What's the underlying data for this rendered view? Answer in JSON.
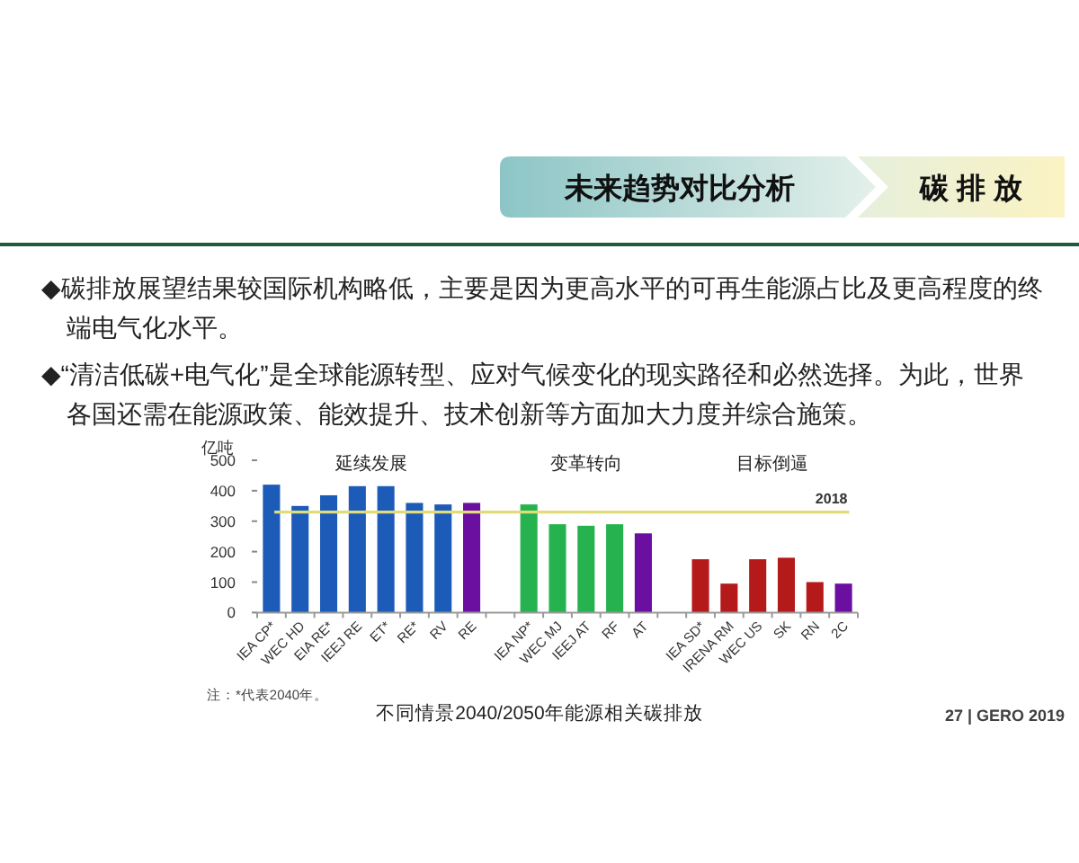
{
  "chart_data": {
    "type": "bar",
    "title": "未来趋势对比分析",
    "subtitle": "碳 排 放",
    "ylabel": "亿吨",
    "xlabel": "不同情景2040/2050年能源相关碳排放",
    "categories": [
      "IEA CP*",
      "WEC HD",
      "EIA RE*",
      "IEEJ RE",
      "ET*",
      "RE*",
      "RV",
      "RE",
      null,
      "IEA NP*",
      "WEC MJ",
      "IEEJ AT",
      "RF",
      "AT",
      null,
      "IEA SD*",
      "IRENA RM",
      "WEC US",
      "SK",
      "RN",
      "2C"
    ],
    "values": [
      420,
      350,
      385,
      415,
      415,
      360,
      355,
      360,
      null,
      355,
      290,
      285,
      290,
      260,
      null,
      175,
      95,
      175,
      180,
      100,
      95
    ],
    "colors": [
      "#1c5cb8",
      "#1c5cb8",
      "#1c5cb8",
      "#1c5cb8",
      "#1c5cb8",
      "#1c5cb8",
      "#1c5cb8",
      "#6a0fa0",
      null,
      "#26b34f",
      "#26b34f",
      "#26b34f",
      "#26b34f",
      "#6a0fa0",
      null,
      "#b51a1a",
      "#b51a1a",
      "#b51a1a",
      "#b51a1a",
      "#b51a1a",
      "#6a0fa0"
    ],
    "ylim": [
      0,
      500
    ],
    "yticks": [
      0,
      100,
      200,
      300,
      400,
      500
    ],
    "ref_lines": [
      {
        "axis": "y",
        "value": 330,
        "color": "#e0dc78"
      }
    ],
    "annotations": [
      "◆碳排放展望结果较国际机构略低，主要是因为更高水平的可再生能源占比及更高程度的终端电气化水平。",
      "◆“清洁低碳+电气化”是全球能源转型、应对气候变化的现实路径和必然选择。为此，世界各国还需在能源政策、能效提升、技术创新等方面加大力度并综合施策。",
      "延续发展",
      "变革转向",
      "目标倒逼",
      "注：*代表2040年。",
      "27 | GERO 2019",
      {
        "text": "2018",
        "y": 330
      }
    ]
  }
}
